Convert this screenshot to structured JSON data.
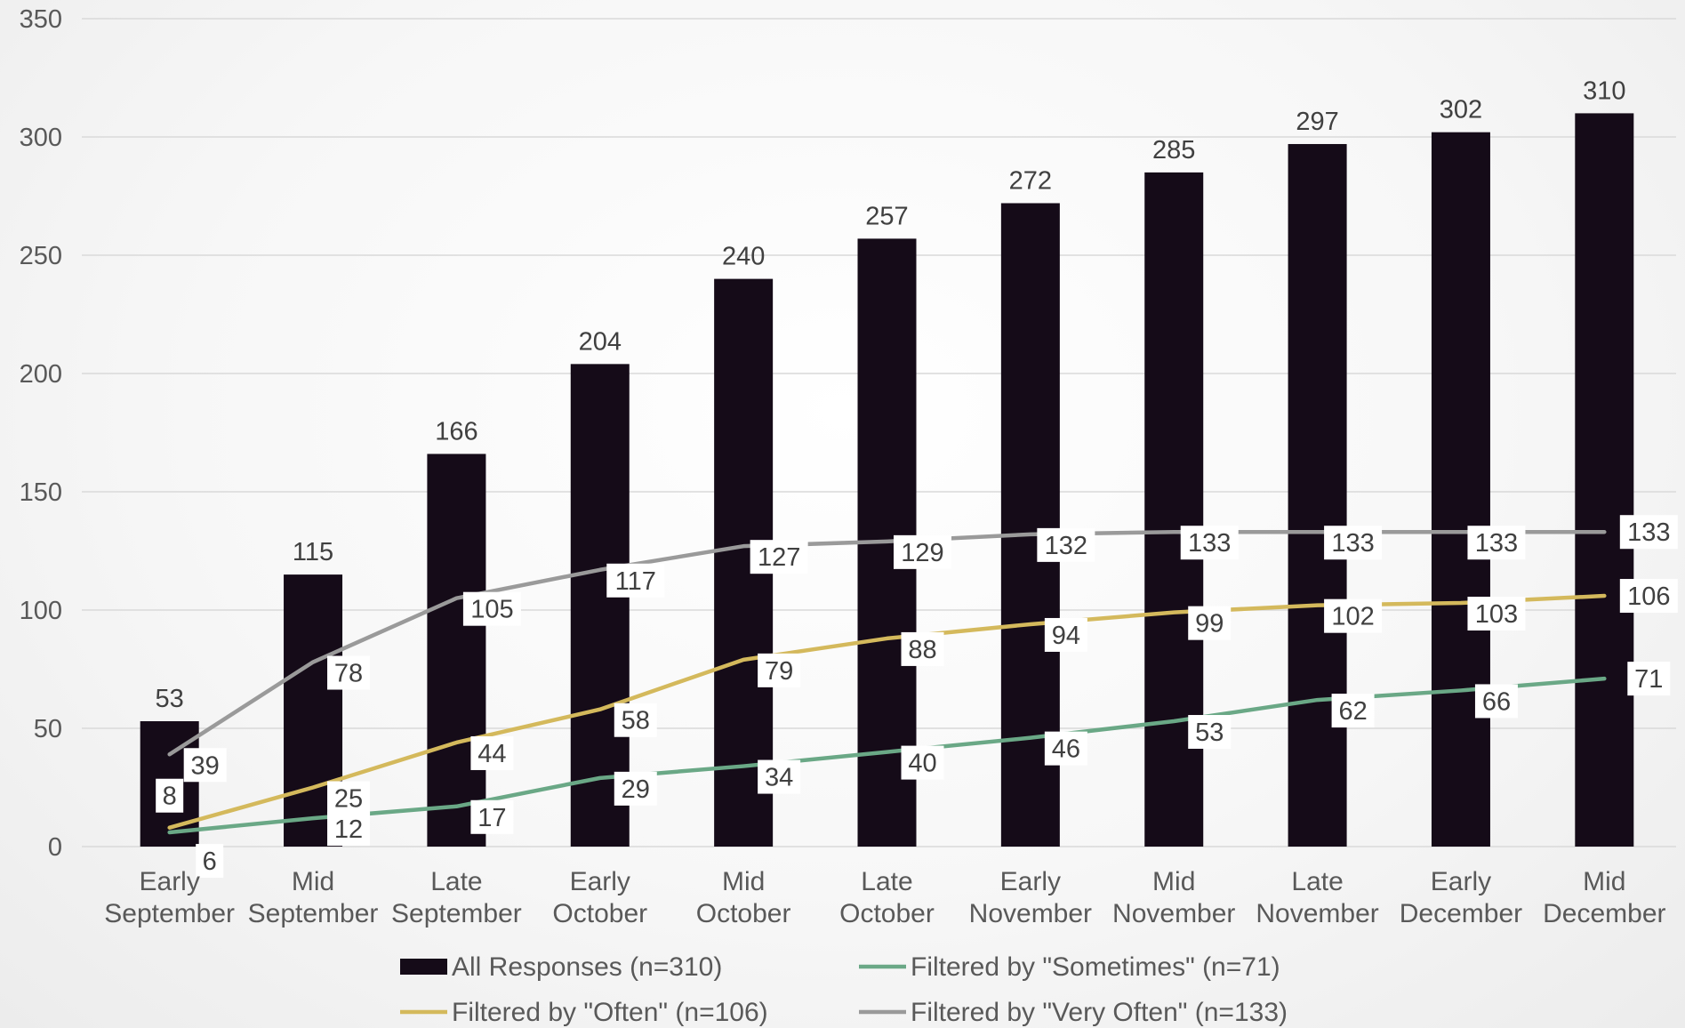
{
  "colors": {
    "bar": "#150b18",
    "sometimes": "#6aa886",
    "often": "#d4b95c",
    "very_often": "#9a9a9a",
    "grid": "#d9d9d9",
    "tick": "#595959"
  },
  "chart_data": {
    "type": "bar",
    "title": "",
    "xlabel": "",
    "ylabel": "",
    "ylim": [
      0,
      350
    ],
    "yticks": [
      0,
      50,
      100,
      150,
      200,
      250,
      300,
      350
    ],
    "grid": true,
    "legend_position": "bottom",
    "categories": [
      [
        "Early",
        "September"
      ],
      [
        "Mid",
        "September"
      ],
      [
        "Late",
        "September"
      ],
      [
        "Early",
        "October"
      ],
      [
        "Mid",
        "October"
      ],
      [
        "Late",
        "October"
      ],
      [
        "Early",
        "November"
      ],
      [
        "Mid",
        "November"
      ],
      [
        "Late",
        "November"
      ],
      [
        "Early",
        "December"
      ],
      [
        "Mid",
        "December"
      ]
    ],
    "series": [
      {
        "name": "All Responses (n=310)",
        "type": "bar",
        "color": "#150b18",
        "values": [
          53,
          115,
          166,
          204,
          240,
          257,
          272,
          285,
          297,
          302,
          310
        ]
      },
      {
        "name": "Filtered by \"Sometimes\" (n=71)",
        "type": "line",
        "color": "#6aa886",
        "values": [
          6,
          12,
          17,
          29,
          34,
          40,
          46,
          53,
          62,
          66,
          71
        ]
      },
      {
        "name": "Filtered by \"Often\" (n=106)",
        "type": "line",
        "color": "#d4b95c",
        "values": [
          8,
          25,
          44,
          58,
          79,
          88,
          94,
          99,
          102,
          103,
          106
        ]
      },
      {
        "name": "Filtered by \"Very Often\" (n=133)",
        "type": "line",
        "color": "#9a9a9a",
        "values": [
          39,
          78,
          105,
          117,
          127,
          129,
          132,
          133,
          133,
          133,
          133
        ]
      }
    ]
  }
}
